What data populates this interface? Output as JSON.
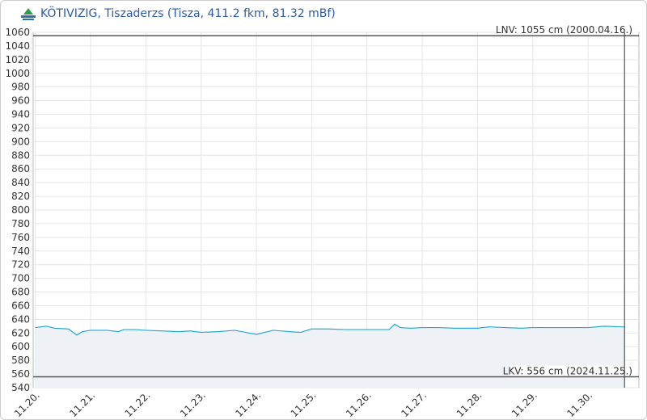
{
  "chart_data": {
    "type": "area",
    "title": "KÖTIVIZIG, Tiszaderzs (Tisza, 411.2 fkm, 81.32 mBf)",
    "x": [
      20.0,
      20.2,
      20.35,
      20.6,
      20.75,
      20.85,
      21.0,
      21.3,
      21.5,
      21.6,
      21.8,
      22.0,
      22.3,
      22.6,
      22.8,
      23.0,
      23.3,
      23.6,
      23.8,
      24.0,
      24.3,
      24.6,
      24.8,
      25.0,
      25.3,
      25.6,
      25.9,
      26.2,
      26.4,
      26.5,
      26.6,
      26.8,
      27.0,
      27.3,
      27.6,
      28.0,
      28.2,
      28.5,
      28.8,
      29.0,
      29.3,
      29.6,
      30.0,
      30.3,
      30.6,
      30.66
    ],
    "series": [
      {
        "color": "#29a8d8",
        "values": [
          628,
          630,
          627,
          626,
          617,
          622,
          624,
          624,
          622,
          625,
          625,
          624,
          623,
          622,
          623,
          621,
          622,
          624,
          621,
          618,
          624,
          622,
          621,
          626,
          626,
          625,
          625,
          625,
          625,
          633,
          628,
          627,
          628,
          628,
          627,
          627,
          629,
          628,
          627,
          628,
          628,
          628,
          628,
          630,
          629,
          629
        ]
      }
    ],
    "xlim": [
      19.96,
      30.92
    ],
    "xticks": [
      {
        "value": 20,
        "label": "11.20."
      },
      {
        "value": 21,
        "label": "11.21."
      },
      {
        "value": 22,
        "label": "11.22."
      },
      {
        "value": 23,
        "label": "11.23."
      },
      {
        "value": 24,
        "label": "11.24."
      },
      {
        "value": 25,
        "label": "11.25."
      },
      {
        "value": 26,
        "label": "11.26."
      },
      {
        "value": 27,
        "label": "11.27."
      },
      {
        "value": 28,
        "label": "11.28."
      },
      {
        "value": 29,
        "label": "11.29."
      },
      {
        "value": 30,
        "label": "11.30."
      }
    ],
    "ylim": [
      540,
      1060
    ],
    "yticks": [
      540,
      560,
      580,
      600,
      620,
      640,
      660,
      680,
      700,
      720,
      740,
      760,
      780,
      800,
      820,
      840,
      860,
      880,
      900,
      920,
      940,
      960,
      980,
      1000,
      1020,
      1040,
      1060
    ],
    "grid": true,
    "marker_x": 30.66,
    "reference_lines": [
      {
        "value": 1055,
        "label": "LNV: 1055 cm (2000.04.16.)"
      },
      {
        "value": 556,
        "label": "LKV: 556 cm (2024.11.25.)"
      }
    ]
  }
}
